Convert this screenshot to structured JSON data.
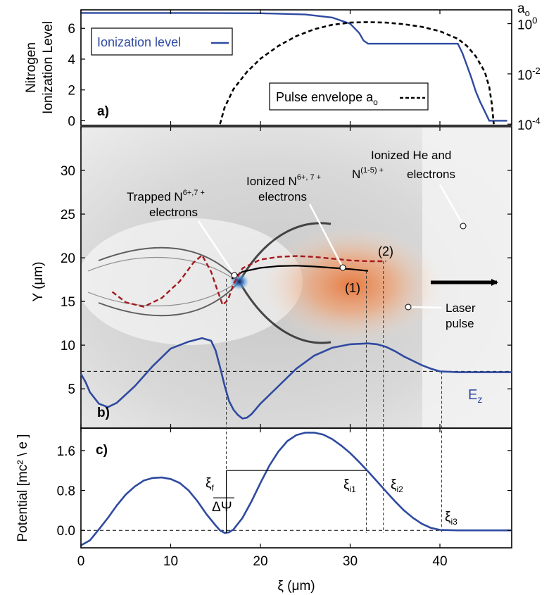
{
  "colors": {
    "ionization": "#2f4aa0",
    "envelope": "#000000",
    "ez": "#2f4aa0",
    "potential": "#2f4aa0",
    "trajectory1": "#000000",
    "trajectory2": "#a3191e",
    "laser": "#e8763a"
  },
  "xaxis": {
    "label": "ξ (μm)",
    "ticks": [
      "0",
      "10",
      "20",
      "30",
      "40"
    ]
  },
  "panel_a": {
    "tag": "a)",
    "ylabel_line1": "Nitrogen",
    "ylabel_line2": "Ionization Level",
    "yticks": [
      "0",
      "2",
      "4",
      "6"
    ],
    "right_label": "a",
    "right_label_sub": "o",
    "right_ticks": [
      {
        "base": "10",
        "exp": "0"
      },
      {
        "base": "10",
        "exp": "-2"
      },
      {
        "base": "10",
        "exp": "-4"
      }
    ],
    "legend_ionization": "Ionization level",
    "legend_envelope": "Pulse envelope a",
    "legend_envelope_sub": "o"
  },
  "panel_b": {
    "tag": "b)",
    "ylabel": "Y (μm)",
    "yticks": [
      "5",
      "10",
      "15",
      "20",
      "25",
      "30"
    ],
    "ez_label": "E",
    "ez_sub": "z",
    "label_trapped_1": "Trapped N",
    "label_trapped_sup": "6+,7 +",
    "label_trapped_2": "electrons",
    "label_ionized_1": "Ionized N",
    "label_ionized_sup": "6+, 7 +",
    "label_ionized_2": "electrons",
    "label_he_1": "Ionized He and",
    "label_he_2": "N",
    "label_he_sup": "(1-5) +",
    "label_he_3": "electrons",
    "label_laser_1": "Laser",
    "label_laser_2": "pulse",
    "label_traj1": "(1)",
    "label_traj2": "(2)"
  },
  "panel_c": {
    "tag": "c)",
    "ylabel": "Potential [mc² \\ e ]",
    "yticks": [
      "0.0",
      "0.8",
      "1.6"
    ],
    "xi_f": "ξ",
    "xi_f_sub": "f",
    "xi_i1": "ξ",
    "xi_i1_sub": "i1",
    "xi_i2": "ξ",
    "xi_i2_sub": "i2",
    "xi_i3": "ξ",
    "xi_i3_sub": "i3",
    "delta_psi": "ΔΨ"
  },
  "chart_data": [
    {
      "type": "line",
      "title": "",
      "xlabel": "ξ (μm)",
      "ylabel": "Nitrogen Ionization Level",
      "xlim": [
        0,
        48
      ],
      "ylim": [
        -0.3,
        7.2
      ],
      "series": [
        {
          "name": "Ionization level",
          "x": [
            0,
            10,
            20,
            25,
            28,
            30,
            31,
            31.5,
            32,
            35,
            38,
            40,
            42,
            42.5,
            43,
            43.5,
            44,
            44.5,
            45,
            45.5,
            47.5
          ],
          "y": [
            7,
            7,
            6.98,
            6.9,
            6.7,
            6.3,
            5.7,
            5.2,
            5,
            5,
            5,
            5,
            5,
            4.4,
            3.6,
            2.8,
            1.9,
            1.2,
            0.6,
            0,
            0
          ]
        },
        {
          "name": "Pulse envelope a",
          "axis": "right",
          "yscale": "log",
          "x": [
            15.5,
            16,
            17,
            18.5,
            20,
            22,
            24,
            26,
            28,
            30,
            32,
            34,
            36,
            38,
            40,
            42,
            43,
            44,
            45,
            45.5,
            45.8,
            46
          ],
          "y": [
            0.0001,
            0.00045,
            0.0025,
            0.012,
            0.04,
            0.13,
            0.32,
            0.6,
            0.9,
            1.1,
            1.15,
            1.1,
            0.95,
            0.75,
            0.5,
            0.25,
            0.13,
            0.05,
            0.012,
            0.003,
            0.0006,
            0.0001
          ]
        }
      ],
      "right_axis": {
        "label": "a",
        "scale": "log",
        "ticks": [
          "10^0",
          "10^-2",
          "10^-4"
        ]
      }
    },
    {
      "type": "line",
      "xlabel": "ξ (μm)",
      "ylabel": "Y (μm)",
      "xlim": [
        0,
        48
      ],
      "ylim": [
        0.5,
        35
      ],
      "series": [
        {
          "name": "E",
          "x": [
            0,
            0.5,
            1,
            2,
            3,
            4,
            6,
            8,
            10,
            12,
            13.5,
            14.5,
            15,
            15.5,
            16,
            16.5,
            17,
            17.5,
            18,
            18.5,
            19,
            20,
            22,
            24,
            26,
            28,
            30,
            32,
            33,
            34,
            35,
            36,
            37,
            38,
            39,
            40,
            42,
            44,
            46,
            48
          ],
          "y": [
            6.7,
            5.8,
            4.6,
            3.3,
            2.9,
            3.4,
            5.3,
            7.6,
            9.6,
            10.4,
            10.8,
            10.5,
            9.4,
            7.5,
            5.4,
            3.6,
            2.6,
            2.0,
            1.6,
            1.7,
            2.1,
            3.3,
            5.3,
            7.3,
            8.8,
            9.7,
            10.1,
            10.2,
            10.1,
            9.8,
            9.3,
            8.7,
            8.2,
            7.7,
            7.3,
            7.0,
            6.9,
            6.9,
            6.9,
            6.9
          ]
        },
        {
          "name": "(1)",
          "x": [
            16.8,
            18,
            20,
            22,
            24,
            26,
            28,
            30,
            32
          ],
          "y": [
            17.6,
            18.4,
            18.85,
            19.05,
            19.1,
            19.0,
            18.85,
            18.7,
            18.5
          ]
        },
        {
          "name": "(2)",
          "x": [
            3.5,
            5,
            7,
            9,
            11,
            12.5,
            13.5,
            14.5,
            15.2,
            15.8,
            16.4,
            17,
            18,
            20,
            22,
            24,
            26,
            28,
            30,
            32,
            34
          ],
          "y": [
            16.1,
            14.9,
            14.4,
            15.4,
            17.3,
            19.4,
            20.3,
            18.4,
            16.3,
            14.6,
            15.2,
            17.0,
            18.8,
            19.8,
            20.1,
            20.2,
            20.1,
            19.9,
            19.7,
            19.6,
            19.6
          ]
        }
      ],
      "hline": 7.0
    },
    {
      "type": "line",
      "xlabel": "ξ (μm)",
      "ylabel": "Potential [mc² \\ e ]",
      "xlim": [
        0,
        48
      ],
      "ylim": [
        -0.35,
        2.05
      ],
      "series": [
        {
          "name": "Potential",
          "x": [
            0,
            1,
            2,
            3,
            4,
            5,
            6,
            7,
            8,
            9,
            10,
            11,
            12,
            13,
            14,
            15,
            15.5,
            16,
            16.5,
            17,
            18,
            19,
            20,
            21,
            22,
            23,
            24,
            25,
            26,
            27,
            28,
            29,
            30,
            31,
            32,
            33,
            34,
            35,
            36,
            37,
            38,
            39,
            40,
            42,
            44,
            46,
            48
          ],
          "y": [
            -0.3,
            -0.2,
            0.02,
            0.25,
            0.5,
            0.72,
            0.88,
            1.0,
            1.05,
            1.06,
            1.03,
            0.95,
            0.8,
            0.58,
            0.32,
            0.1,
            0.0,
            -0.05,
            -0.04,
            0.02,
            0.25,
            0.58,
            0.95,
            1.3,
            1.58,
            1.79,
            1.91,
            1.96,
            1.96,
            1.92,
            1.83,
            1.7,
            1.55,
            1.37,
            1.18,
            0.98,
            0.78,
            0.58,
            0.4,
            0.25,
            0.13,
            0.05,
            0.01,
            0.0,
            0.0,
            0.0,
            0.0
          ]
        }
      ],
      "hline": 0.0,
      "levels": {
        "xi_f": 16.2,
        "xi_i1": 31.8,
        "xi_i2": 33.7,
        "xi_i3": 40.2,
        "psi_top": 1.2
      }
    }
  ]
}
